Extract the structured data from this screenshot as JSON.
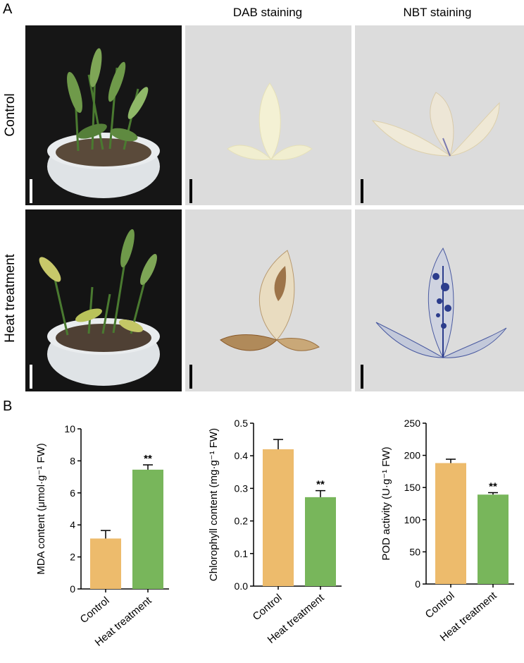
{
  "panels": {
    "a_label": "A",
    "b_label": "B"
  },
  "column_headers": [
    "DAB staining",
    "NBT staining"
  ],
  "row_labels": [
    "Control",
    "Heat treatment"
  ],
  "colors": {
    "control_bar": "#EDBB6C",
    "heat_bar": "#78B65B",
    "photo_plant_bg": "#1a1a1a",
    "photo_leaf_bg": "#dcdcdc",
    "dab_brown": "#8a5a2a",
    "nbt_blue": "#2b3c8c"
  },
  "chart_data": [
    {
      "type": "bar",
      "categories": [
        "Control",
        "Heat treatment"
      ],
      "values": [
        3.15,
        7.45
      ],
      "errors": [
        0.5,
        0.3
      ],
      "significance": [
        "",
        "**"
      ],
      "ylabel": "MDA content (μmol·g⁻¹ FW)",
      "ylim": [
        0,
        10
      ],
      "yticks": [
        0,
        2,
        4,
        6,
        8,
        10
      ],
      "ytick_labels": [
        "0",
        "2",
        "4",
        "6",
        "8",
        "10"
      ]
    },
    {
      "type": "bar",
      "categories": [
        "Control",
        "Heat treatment"
      ],
      "values": [
        0.42,
        0.273
      ],
      "errors": [
        0.03,
        0.02
      ],
      "significance": [
        "",
        "**"
      ],
      "ylabel": "Chlorophyll content (mg·g⁻¹ FW)",
      "ylim": [
        0,
        0.5
      ],
      "yticks": [
        0,
        0.1,
        0.2,
        0.3,
        0.4,
        0.5
      ],
      "ytick_labels": [
        "0.0",
        "0.1",
        "0.2",
        "0.3",
        "0.4",
        "0.5"
      ]
    },
    {
      "type": "bar",
      "categories": [
        "Control",
        "Heat treatment"
      ],
      "values": [
        188,
        139
      ],
      "errors": [
        6,
        3
      ],
      "significance": [
        "",
        "**"
      ],
      "ylabel": "POD activity (U·g⁻¹ FW)",
      "ylim": [
        0,
        250
      ],
      "yticks": [
        0,
        50,
        100,
        150,
        200,
        250
      ],
      "ytick_labels": [
        "0",
        "50",
        "100",
        "150",
        "200",
        "250"
      ]
    }
  ]
}
